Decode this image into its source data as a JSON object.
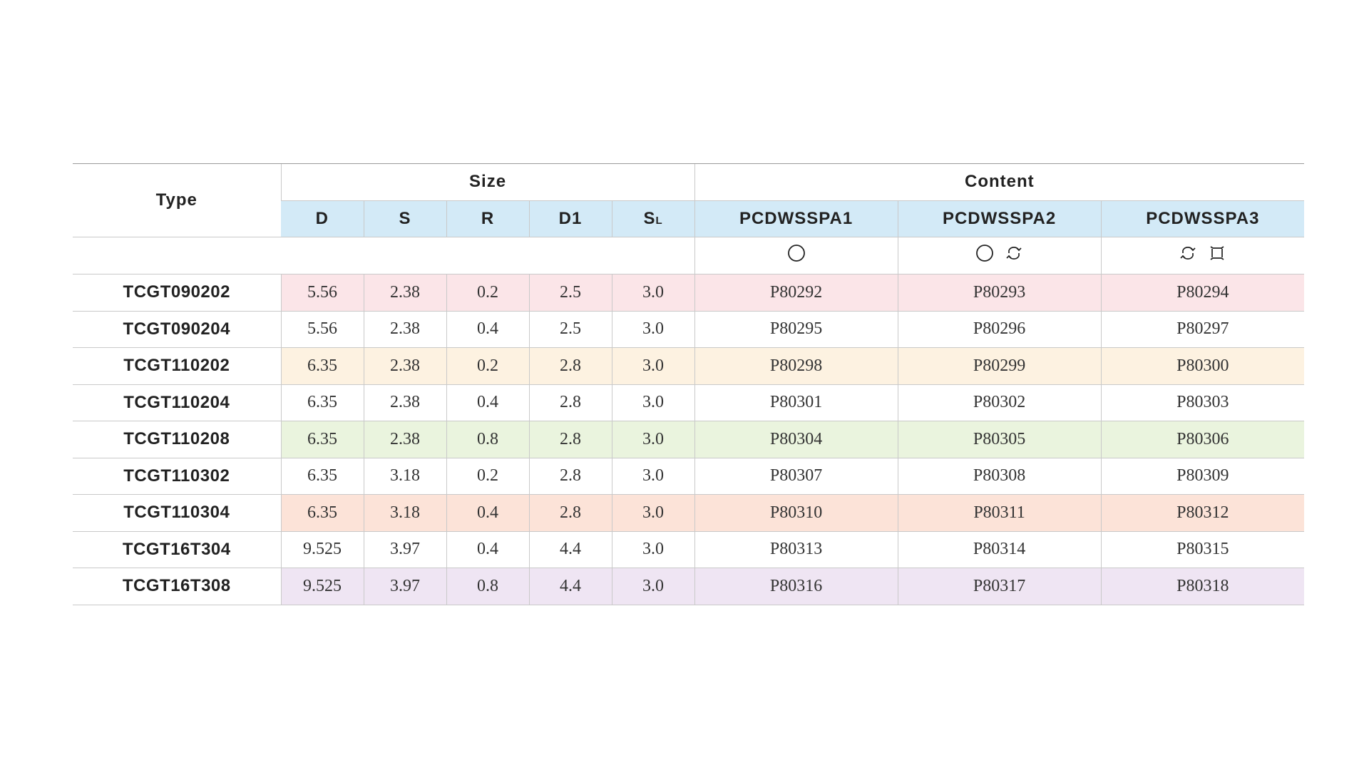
{
  "table": {
    "type_header": "Type",
    "size_header": "Size",
    "content_header": "Content",
    "size_columns": [
      "D",
      "S",
      "R",
      "D1"
    ],
    "sl_column": {
      "main": "S",
      "sub": "L"
    },
    "content_columns": [
      "PCDWSSPA1",
      "PCDWSSPA2",
      "PCDWSSPA3"
    ],
    "content_icons": [
      [
        "circle-icon"
      ],
      [
        "circle-icon",
        "rotate-icon"
      ],
      [
        "rotate-icon",
        "square-rotate-icon"
      ]
    ],
    "rows": [
      {
        "type": "TCGT090202",
        "D": "5.56",
        "S": "2.38",
        "R": "0.2",
        "D1": "2.5",
        "SL": "3.0",
        "c1": "P80292",
        "c2": "P80293",
        "c3": "P80294",
        "tint": "pink"
      },
      {
        "type": "TCGT090204",
        "D": "5.56",
        "S": "2.38",
        "R": "0.4",
        "D1": "2.5",
        "SL": "3.0",
        "c1": "P80295",
        "c2": "P80296",
        "c3": "P80297",
        "tint": "none"
      },
      {
        "type": "TCGT110202",
        "D": "6.35",
        "S": "2.38",
        "R": "0.2",
        "D1": "2.8",
        "SL": "3.0",
        "c1": "P80298",
        "c2": "P80299",
        "c3": "P80300",
        "tint": "yellow"
      },
      {
        "type": "TCGT110204",
        "D": "6.35",
        "S": "2.38",
        "R": "0.4",
        "D1": "2.8",
        "SL": "3.0",
        "c1": "P80301",
        "c2": "P80302",
        "c3": "P80303",
        "tint": "none"
      },
      {
        "type": "TCGT110208",
        "D": "6.35",
        "S": "2.38",
        "R": "0.8",
        "D1": "2.8",
        "SL": "3.0",
        "c1": "P80304",
        "c2": "P80305",
        "c3": "P80306",
        "tint": "green"
      },
      {
        "type": "TCGT110302",
        "D": "6.35",
        "S": "3.18",
        "R": "0.2",
        "D1": "2.8",
        "SL": "3.0",
        "c1": "P80307",
        "c2": "P80308",
        "c3": "P80309",
        "tint": "none"
      },
      {
        "type": "TCGT110304",
        "D": "6.35",
        "S": "3.18",
        "R": "0.4",
        "D1": "2.8",
        "SL": "3.0",
        "c1": "P80310",
        "c2": "P80311",
        "c3": "P80312",
        "tint": "peach"
      },
      {
        "type": "TCGT16T304",
        "D": "9.525",
        "S": "3.97",
        "R": "0.4",
        "D1": "4.4",
        "SL": "3.0",
        "c1": "P80313",
        "c2": "P80314",
        "c3": "P80315",
        "tint": "none"
      },
      {
        "type": "TCGT16T308",
        "D": "9.525",
        "S": "3.97",
        "R": "0.8",
        "D1": "4.4",
        "SL": "3.0",
        "c1": "P80316",
        "c2": "P80317",
        "c3": "P80318",
        "tint": "lilac"
      }
    ]
  },
  "colors": {
    "header_blue": "#d3eaf7",
    "pink": "#fbe5e8",
    "yellow": "#fdf2e1",
    "green": "#eaf4de",
    "peach": "#fce3d8",
    "lilac": "#efe5f3"
  }
}
